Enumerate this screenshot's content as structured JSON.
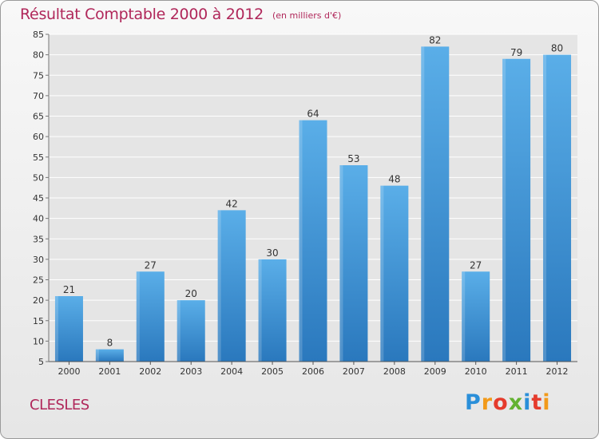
{
  "header": {
    "title": "Résultat Comptable 2000 à 2012",
    "subtitle": "(en milliers d'€)"
  },
  "footer": {
    "commune": "CLESLES",
    "logo": {
      "text": "Proxiti",
      "colors": [
        "#2a8fd9",
        "#f29a1a",
        "#e53b2c",
        "#63b231",
        "#2a8fd9",
        "#e53b2c",
        "#f29a1a"
      ]
    }
  },
  "colors": {
    "title": "#b0275a",
    "bar_top": "#5aaee8",
    "bar_bottom": "#2a78bd",
    "grid": "#ffffff",
    "text": "#333333"
  },
  "chart_data": {
    "type": "bar",
    "title": "Résultat Comptable 2000 à 2012",
    "subtitle": "(en milliers d'€)",
    "categories": [
      "2000",
      "2001",
      "2002",
      "2003",
      "2004",
      "2005",
      "2006",
      "2007",
      "2008",
      "2009",
      "2010",
      "2011",
      "2012"
    ],
    "values": [
      21,
      8,
      27,
      20,
      42,
      30,
      64,
      53,
      48,
      82,
      27,
      79,
      80
    ],
    "ylim": [
      5,
      85
    ],
    "yticks": [
      5,
      10,
      15,
      20,
      25,
      30,
      35,
      40,
      45,
      50,
      55,
      60,
      65,
      70,
      75,
      80,
      85
    ],
    "grid": true,
    "data_labels": true
  }
}
